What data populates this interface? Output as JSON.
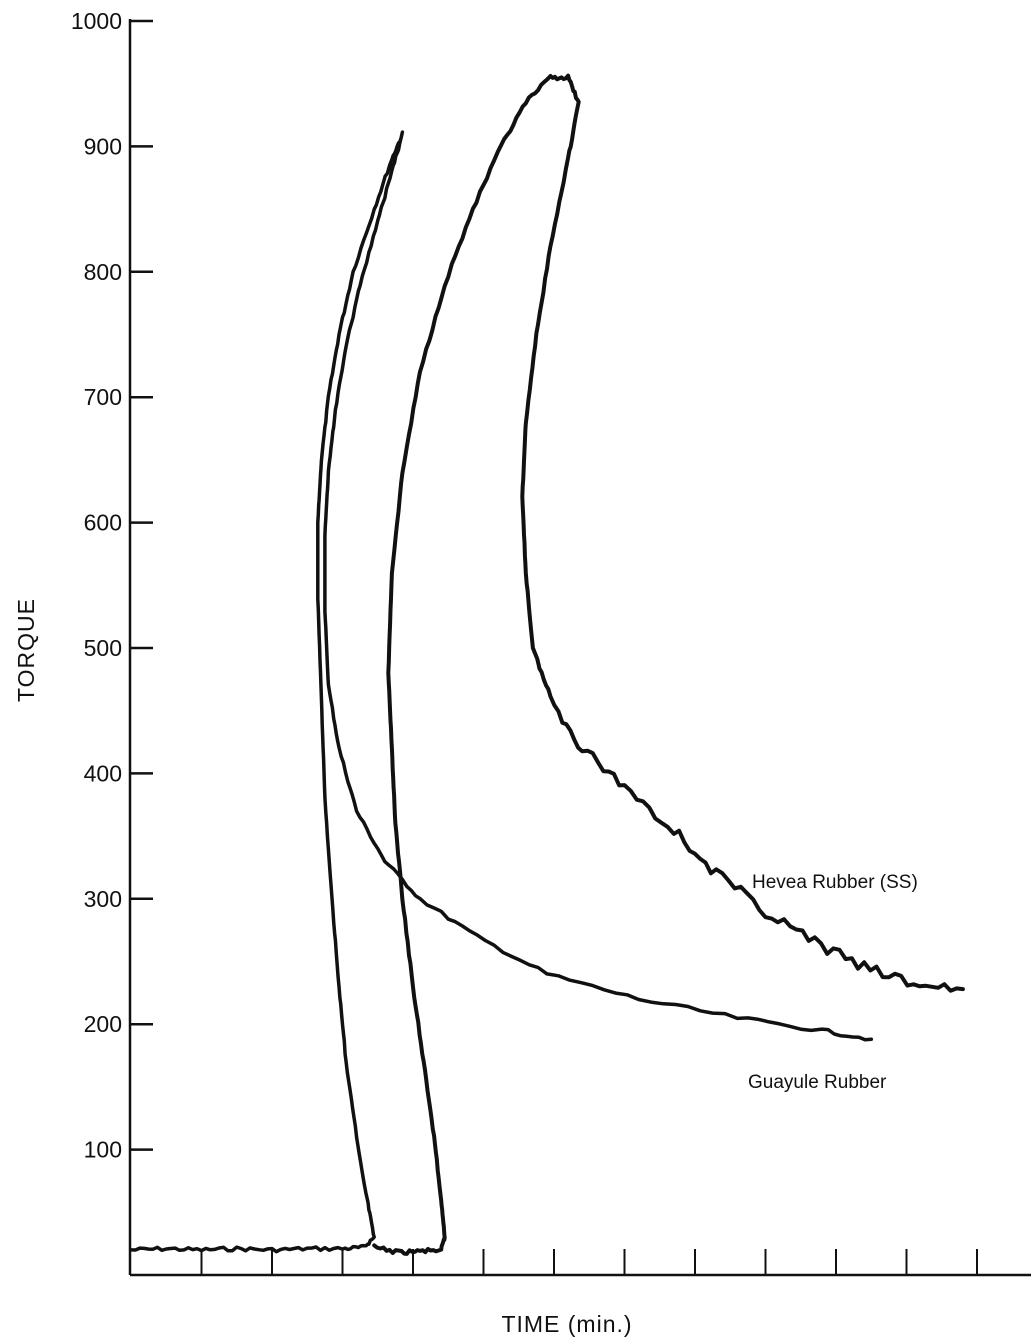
{
  "chart_data": {
    "type": "line",
    "title": "",
    "xlabel": "TIME (min.)",
    "ylabel": "TORQUE",
    "ylim": [
      0,
      1000
    ],
    "yticks": [
      100,
      200,
      300,
      400,
      500,
      600,
      700,
      800,
      900,
      1000
    ],
    "x_tick_count": 13,
    "grid": false,
    "legend": "none",
    "colors": {
      "line": "#111111",
      "background": "#ffffff"
    },
    "series": [
      {
        "name": "Guayule Rubber",
        "note_units": "x in minor x-tick intervals from the y-axis",
        "points": [
          [
            0,
            20
          ],
          [
            0.5,
            21
          ],
          [
            1,
            20
          ],
          [
            1.5,
            21
          ],
          [
            2,
            20
          ],
          [
            2.5,
            21
          ],
          [
            3,
            21
          ],
          [
            3.3,
            22
          ],
          [
            3.45,
            30
          ],
          [
            3.35,
            60
          ],
          [
            3.2,
            110
          ],
          [
            3.05,
            170
          ],
          [
            2.95,
            230
          ],
          [
            2.85,
            300
          ],
          [
            2.75,
            380
          ],
          [
            2.7,
            460
          ],
          [
            2.65,
            540
          ],
          [
            2.65,
            600
          ],
          [
            2.7,
            650
          ],
          [
            2.8,
            700
          ],
          [
            2.95,
            750
          ],
          [
            3.15,
            800
          ],
          [
            3.45,
            850
          ],
          [
            3.7,
            890
          ],
          [
            3.85,
            910
          ],
          [
            3.7,
            880
          ],
          [
            3.5,
            840
          ],
          [
            3.25,
            790
          ],
          [
            3.05,
            740
          ],
          [
            2.9,
            690
          ],
          [
            2.8,
            640
          ],
          [
            2.75,
            590
          ],
          [
            2.75,
            530
          ],
          [
            2.8,
            470
          ],
          [
            2.95,
            420
          ],
          [
            3.2,
            370
          ],
          [
            3.6,
            330
          ],
          [
            4.1,
            300
          ],
          [
            4.9,
            270
          ],
          [
            5.9,
            240
          ],
          [
            7.2,
            220
          ],
          [
            8.6,
            205
          ],
          [
            9.8,
            195
          ],
          [
            10.5,
            188
          ]
        ]
      },
      {
        "name": "Hevea Rubber (SS)",
        "note_units": "x in minor x-tick intervals from the y-axis",
        "points": [
          [
            3.45,
            22
          ],
          [
            3.8,
            18
          ],
          [
            4.1,
            19
          ],
          [
            4.4,
            20
          ],
          [
            4.45,
            30
          ],
          [
            4.4,
            60
          ],
          [
            4.3,
            110
          ],
          [
            4.15,
            170
          ],
          [
            4.0,
            230
          ],
          [
            3.85,
            300
          ],
          [
            3.75,
            360
          ],
          [
            3.7,
            420
          ],
          [
            3.65,
            480
          ],
          [
            3.7,
            560
          ],
          [
            3.85,
            640
          ],
          [
            4.1,
            720
          ],
          [
            4.45,
            790
          ],
          [
            4.85,
            850
          ],
          [
            5.25,
            900
          ],
          [
            5.6,
            935
          ],
          [
            5.95,
            955
          ],
          [
            6.2,
            955
          ],
          [
            6.35,
            935
          ],
          [
            6.2,
            890
          ],
          [
            5.95,
            820
          ],
          [
            5.75,
            750
          ],
          [
            5.6,
            680
          ],
          [
            5.55,
            620
          ],
          [
            5.6,
            560
          ],
          [
            5.7,
            500
          ],
          [
            5.95,
            460
          ],
          [
            6.4,
            420
          ],
          [
            7.0,
            390
          ],
          [
            7.7,
            355
          ],
          [
            8.3,
            320
          ],
          [
            9.0,
            290
          ],
          [
            9.7,
            265
          ],
          [
            10.4,
            245
          ],
          [
            11.1,
            232
          ],
          [
            11.8,
            228
          ]
        ]
      }
    ],
    "series_labels": {
      "hevea": "Hevea Rubber (SS)",
      "guayule": "Guayule Rubber"
    }
  }
}
